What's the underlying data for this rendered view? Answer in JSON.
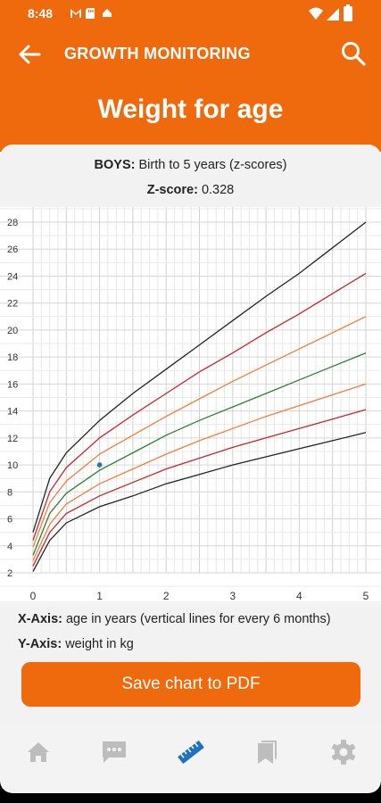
{
  "status": {
    "time": "8:48"
  },
  "app": {
    "title": "GROWTH MONITORING",
    "page_title": "Weight for age"
  },
  "info": {
    "group_label": "BOYS:",
    "group_value": " Birth to 5 years (z-scores)",
    "zscore_label": "Z-score:",
    "zscore_value": " 0.328"
  },
  "axes_info": {
    "x_label": "X-Axis:",
    "x_text": " age in years (vertical lines for every 6 months)",
    "y_label": "Y-Axis:",
    "y_text": " weight in kg"
  },
  "actions": {
    "save": "Save chart to PDF"
  },
  "nav": [
    "home-icon",
    "chat-icon",
    "ruler-icon",
    "bookmark-icon",
    "gear-icon"
  ],
  "colors": {
    "accent": "#ee6a0c",
    "active_nav": "#1e73be",
    "inactive_nav": "#bdbdbd"
  },
  "chart_data": {
    "type": "line",
    "xlabel": "",
    "ylabel": "",
    "xlim": [
      0,
      5
    ],
    "ylim": [
      2,
      28
    ],
    "x_ticks": [
      0,
      1,
      2,
      3,
      4,
      5
    ],
    "y_ticks": [
      2,
      4,
      6,
      8,
      10,
      12,
      14,
      16,
      18,
      20,
      22,
      24,
      26,
      28
    ],
    "grid": true,
    "series": [
      {
        "color": "#222222",
        "points": [
          [
            0,
            2.1
          ],
          [
            0.25,
            4.4
          ],
          [
            0.5,
            5.7
          ],
          [
            1,
            6.9
          ],
          [
            1.5,
            7.7
          ],
          [
            2,
            8.6
          ],
          [
            2.5,
            9.3
          ],
          [
            3,
            10.0
          ],
          [
            3.5,
            10.6
          ],
          [
            4,
            11.2
          ],
          [
            4.5,
            11.8
          ],
          [
            5,
            12.4
          ]
        ]
      },
      {
        "color": "#c0282d",
        "points": [
          [
            0,
            2.5
          ],
          [
            0.25,
            5.0
          ],
          [
            0.5,
            6.4
          ],
          [
            1,
            7.7
          ],
          [
            1.5,
            8.7
          ],
          [
            2,
            9.7
          ],
          [
            2.5,
            10.5
          ],
          [
            3,
            11.3
          ],
          [
            3.5,
            12.0
          ],
          [
            4,
            12.7
          ],
          [
            4.5,
            13.4
          ],
          [
            5,
            14.1
          ]
        ]
      },
      {
        "color": "#ef7d3c",
        "points": [
          [
            0,
            2.9
          ],
          [
            0.25,
            5.6
          ],
          [
            0.5,
            7.1
          ],
          [
            1,
            8.6
          ],
          [
            1.5,
            9.7
          ],
          [
            2,
            10.8
          ],
          [
            2.5,
            11.8
          ],
          [
            3,
            12.7
          ],
          [
            3.5,
            13.6
          ],
          [
            4,
            14.4
          ],
          [
            4.5,
            15.2
          ],
          [
            5,
            16.0
          ]
        ]
      },
      {
        "color": "#2e7d32",
        "points": [
          [
            0,
            3.3
          ],
          [
            0.25,
            6.4
          ],
          [
            0.5,
            7.9
          ],
          [
            1,
            9.6
          ],
          [
            1.5,
            10.9
          ],
          [
            2,
            12.2
          ],
          [
            2.5,
            13.3
          ],
          [
            3,
            14.3
          ],
          [
            3.5,
            15.3
          ],
          [
            4,
            16.3
          ],
          [
            4.5,
            17.3
          ],
          [
            5,
            18.3
          ]
        ]
      },
      {
        "color": "#ef7d3c",
        "points": [
          [
            0,
            3.9
          ],
          [
            0.25,
            7.2
          ],
          [
            0.5,
            8.8
          ],
          [
            1,
            10.8
          ],
          [
            1.5,
            12.2
          ],
          [
            2,
            13.6
          ],
          [
            2.5,
            14.9
          ],
          [
            3,
            16.2
          ],
          [
            3.5,
            17.4
          ],
          [
            4,
            18.6
          ],
          [
            4.5,
            19.8
          ],
          [
            5,
            21.0
          ]
        ]
      },
      {
        "color": "#c0282d",
        "points": [
          [
            0,
            4.4
          ],
          [
            0.25,
            8.0
          ],
          [
            0.5,
            9.8
          ],
          [
            1,
            12.0
          ],
          [
            1.5,
            13.7
          ],
          [
            2,
            15.3
          ],
          [
            2.5,
            16.9
          ],
          [
            3,
            18.3
          ],
          [
            3.5,
            19.8
          ],
          [
            4,
            21.2
          ],
          [
            4.5,
            22.7
          ],
          [
            5,
            24.2
          ]
        ]
      },
      {
        "color": "#222222",
        "points": [
          [
            0,
            5.0
          ],
          [
            0.25,
            9.0
          ],
          [
            0.5,
            10.9
          ],
          [
            1,
            13.3
          ],
          [
            1.5,
            15.3
          ],
          [
            2,
            17.1
          ],
          [
            2.5,
            18.9
          ],
          [
            3,
            20.7
          ],
          [
            3.5,
            22.5
          ],
          [
            4,
            24.2
          ],
          [
            4.5,
            26.1
          ],
          [
            5,
            28.0
          ]
        ]
      }
    ],
    "measurement": {
      "x": 1.0,
      "y": 10.0,
      "color": "#1e73be"
    }
  }
}
